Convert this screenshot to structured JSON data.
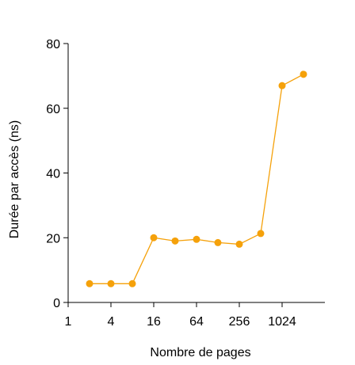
{
  "chart_data": {
    "type": "line",
    "title": "",
    "xlabel": "Nombre de pages",
    "ylabel": "Durée par accès (ns)",
    "x_scale": "log2",
    "xlim": [
      1,
      4096
    ],
    "ylim": [
      0,
      80
    ],
    "x_ticks": [
      1,
      4,
      16,
      64,
      256,
      1024
    ],
    "x_tick_labels": [
      "1",
      "4",
      "16",
      "64",
      "256",
      "1024"
    ],
    "y_ticks": [
      0,
      20,
      40,
      60,
      80
    ],
    "y_tick_labels": [
      "0",
      "20",
      "40",
      "60",
      "80"
    ],
    "grid": false,
    "legend": "none",
    "color": "#F5A10A",
    "series": [
      {
        "x": [
          2,
          4,
          8,
          16,
          32,
          64,
          128,
          256,
          512,
          1024,
          2048
        ],
        "y": [
          5.8,
          5.8,
          5.8,
          20,
          19,
          19.5,
          18.5,
          18,
          21.3,
          67,
          70.5
        ]
      }
    ]
  }
}
